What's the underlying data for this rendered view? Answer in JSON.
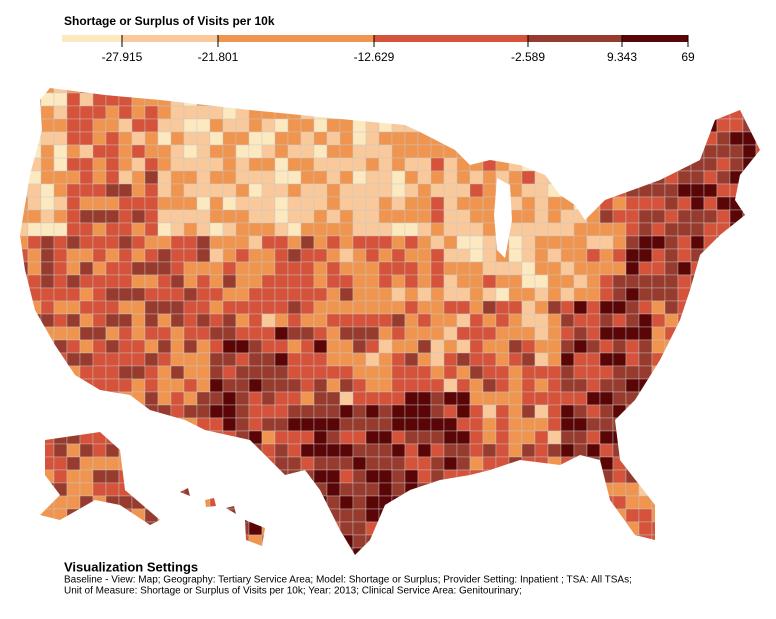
{
  "legend": {
    "title": "Shortage or Surplus of Visits per 10k",
    "ticks": [
      -27.915,
      -21.801,
      -12.629,
      -2.589,
      9.343,
      69
    ],
    "colors": [
      "#fde9c0",
      "#f9c99b",
      "#f0954f",
      "#d5533a",
      "#973b2e",
      "#5a0607"
    ]
  },
  "settings": {
    "title": "Visualization Settings",
    "lines": [
      "Baseline - View: Map; Geography: Tertiary Service Area; Model: Shortage or Surplus; Provider Setting: Inpatient ; TSA: All TSAs;",
      "Unit of Measure: Shortage or Surplus of Visits per 10k; Year: 2013; Clinical Service Area: Genitourinary;"
    ]
  }
}
